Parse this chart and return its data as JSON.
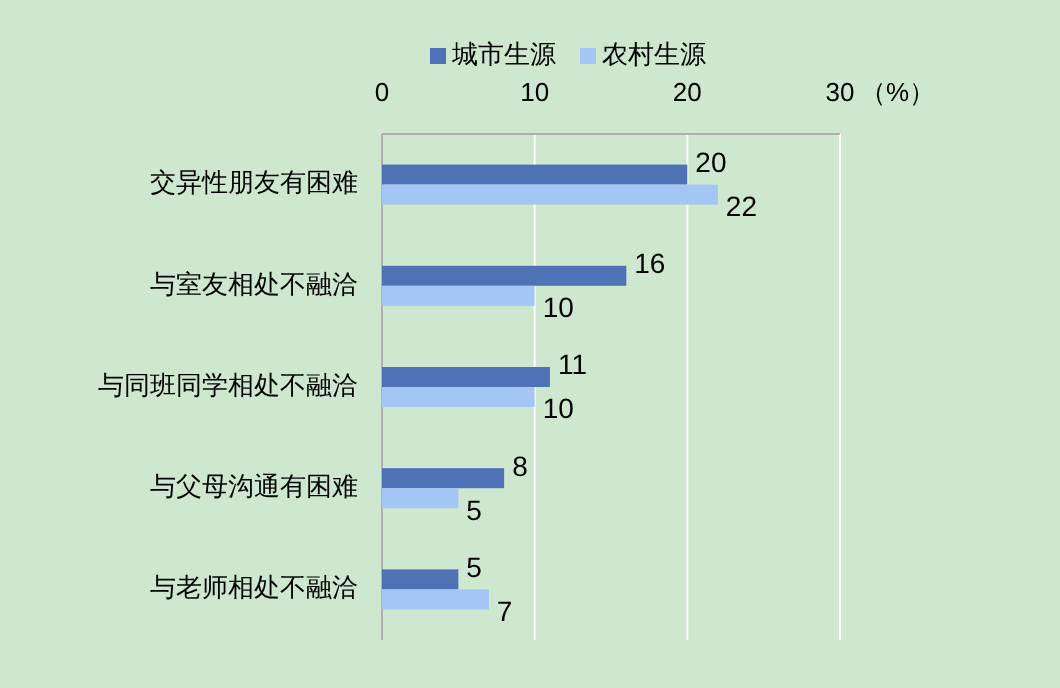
{
  "chart_data": {
    "type": "bar",
    "orientation": "horizontal",
    "xlabel": "（%）",
    "categories": [
      "交异性朋友有困难",
      "与室友相处不融洽",
      "与同班同学相处不融洽",
      "与父母沟通有困难",
      "与老师相处不融洽"
    ],
    "series": [
      {
        "name": "城市生源",
        "color": "#4f71b5",
        "values": [
          20,
          16,
          11,
          8,
          5
        ]
      },
      {
        "name": "农村生源",
        "color": "#a3c6f4",
        "values": [
          22,
          10,
          10,
          5,
          7
        ]
      }
    ],
    "xlim": [
      0,
      30
    ],
    "xticks": [
      0,
      10,
      20,
      30
    ],
    "grid": "x",
    "legend": "top",
    "data_labels": true
  }
}
